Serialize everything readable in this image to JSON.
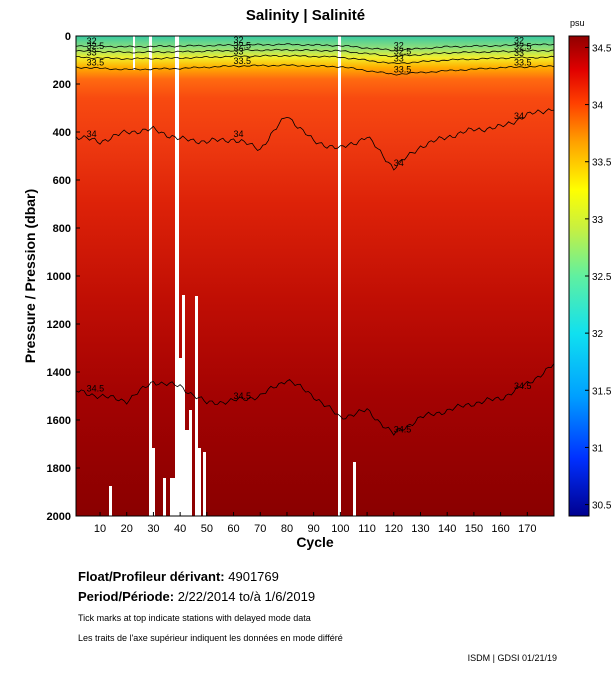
{
  "chart_data": {
    "type": "heatmap",
    "title": "Salinity | Salinité",
    "xlabel": "Cycle",
    "ylabel": "Pressure / Pression (dbar)",
    "xlim": [
      1,
      180
    ],
    "ylim": [
      0,
      2000
    ],
    "y_inverted": true,
    "x_ticks": [
      10,
      20,
      30,
      40,
      50,
      60,
      70,
      80,
      90,
      100,
      110,
      120,
      130,
      140,
      150,
      160,
      170
    ],
    "y_ticks": [
      0,
      200,
      400,
      600,
      800,
      1000,
      1200,
      1400,
      1600,
      1800,
      2000
    ],
    "colorbar": {
      "unit": "psu",
      "range": [
        30.4,
        34.6
      ],
      "ticks": [
        "34.5",
        "34",
        "33.5",
        "33",
        "32.5",
        "32",
        "31.5",
        "31",
        "30.5"
      ],
      "tick_values": [
        34.5,
        34.0,
        33.5,
        33.0,
        32.5,
        32.0,
        31.5,
        31.0,
        30.5
      ]
    },
    "contours": [
      {
        "level": "32",
        "depth_profile": [
          [
            1,
            40
          ],
          [
            20,
            45
          ],
          [
            40,
            42
          ],
          [
            60,
            38
          ],
          [
            80,
            35
          ],
          [
            100,
            40
          ],
          [
            120,
            60
          ],
          [
            140,
            45
          ],
          [
            160,
            40
          ],
          [
            180,
            35
          ]
        ]
      },
      {
        "level": "32.5",
        "depth_profile": [
          [
            1,
            62
          ],
          [
            20,
            68
          ],
          [
            40,
            66
          ],
          [
            60,
            60
          ],
          [
            80,
            58
          ],
          [
            100,
            62
          ],
          [
            120,
            85
          ],
          [
            140,
            70
          ],
          [
            160,
            65
          ],
          [
            180,
            60
          ]
        ]
      },
      {
        "level": "33",
        "depth_profile": [
          [
            1,
            88
          ],
          [
            20,
            95
          ],
          [
            40,
            92
          ],
          [
            60,
            85
          ],
          [
            80,
            82
          ],
          [
            100,
            88
          ],
          [
            120,
            115
          ],
          [
            140,
            100
          ],
          [
            160,
            92
          ],
          [
            180,
            88
          ]
        ]
      },
      {
        "level": "33.5",
        "depth_profile": [
          [
            1,
            130
          ],
          [
            20,
            140
          ],
          [
            40,
            135
          ],
          [
            60,
            125
          ],
          [
            80,
            122
          ],
          [
            100,
            128
          ],
          [
            120,
            160
          ],
          [
            140,
            145
          ],
          [
            160,
            132
          ],
          [
            180,
            125
          ]
        ]
      },
      {
        "level": "34",
        "depth_profile": [
          [
            1,
            420
          ],
          [
            10,
            440
          ],
          [
            20,
            400
          ],
          [
            30,
            390
          ],
          [
            40,
            430
          ],
          [
            50,
            440
          ],
          [
            60,
            430
          ],
          [
            70,
            470
          ],
          [
            80,
            330
          ],
          [
            90,
            440
          ],
          [
            100,
            470
          ],
          [
            110,
            420
          ],
          [
            120,
            550
          ],
          [
            130,
            460
          ],
          [
            140,
            420
          ],
          [
            150,
            390
          ],
          [
            160,
            380
          ],
          [
            170,
            330
          ],
          [
            180,
            300
          ]
        ]
      },
      {
        "level": "34.5",
        "depth_profile": [
          [
            1,
            1480
          ],
          [
            10,
            1500
          ],
          [
            20,
            1520
          ],
          [
            30,
            1440
          ],
          [
            40,
            1460
          ],
          [
            50,
            1530
          ],
          [
            60,
            1520
          ],
          [
            70,
            1500
          ],
          [
            80,
            1430
          ],
          [
            90,
            1500
          ],
          [
            100,
            1590
          ],
          [
            110,
            1560
          ],
          [
            120,
            1660
          ],
          [
            130,
            1590
          ],
          [
            140,
            1560
          ],
          [
            150,
            1530
          ],
          [
            160,
            1510
          ],
          [
            170,
            1450
          ],
          [
            180,
            1370
          ]
        ]
      }
    ],
    "annotation_labels": [
      "32",
      "32.5",
      "33",
      "33.5",
      "34",
      "34.5"
    ]
  },
  "info": {
    "float_label": "Float/Profileur dérivant:",
    "float_value": "4901769",
    "period_label": "Period/Période:",
    "period_value": "2/22/2014  to/à  1/6/2019",
    "note_en": "Tick marks at top indicate stations with delayed mode data",
    "note_fr": "Les traits de l'axe supérieur indiquent les données en mode différé",
    "credit": "ISDM | GDSI  01/21/19"
  }
}
